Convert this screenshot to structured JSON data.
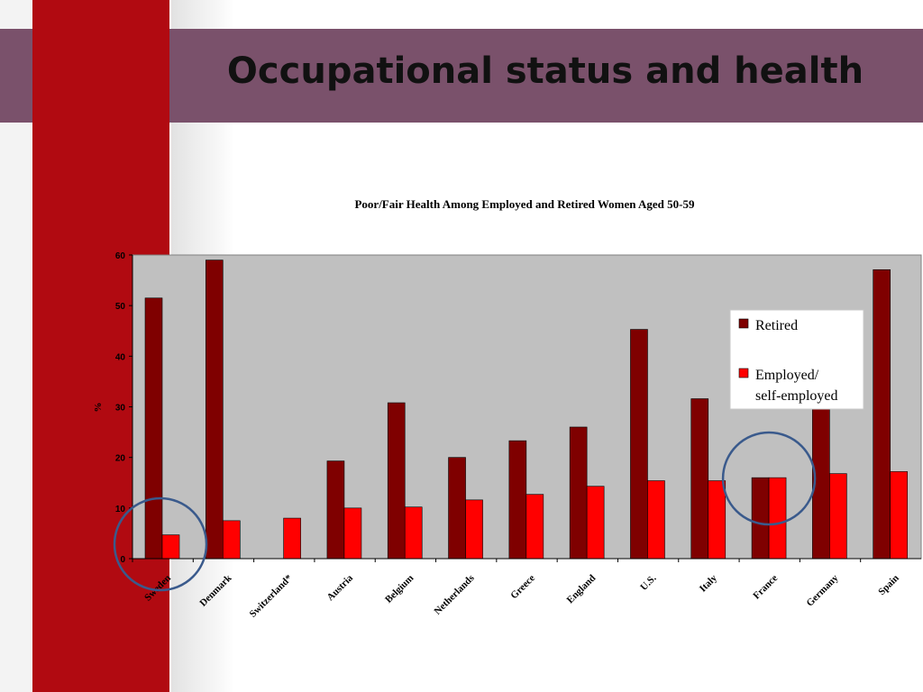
{
  "slide": {
    "title": "Occupational status and health"
  },
  "chart_data": {
    "type": "bar",
    "title": "Poor/Fair Health Among Employed and Retired Women Aged 50-59",
    "ylabel": "%",
    "xlabel": "",
    "ylim": [
      0,
      60
    ],
    "yticks": [
      0,
      10,
      20,
      30,
      40,
      50,
      60
    ],
    "grid": false,
    "legend_position": "right",
    "categories": [
      "Sweden",
      "Denmark",
      "Switzerland*",
      "Austria",
      "Belgium",
      "Netherlands",
      "Greece",
      "England",
      "U.S.",
      "Italy",
      "France",
      "Germany",
      "Spain"
    ],
    "series": [
      {
        "name": "Retired",
        "color": "#7f0000",
        "values": [
          51.5,
          59,
          null,
          19.3,
          30.8,
          20,
          23.3,
          26,
          45.3,
          31.6,
          16,
          30,
          57.1
        ]
      },
      {
        "name": "Employed/\nself-employed",
        "legend_lines": [
          "Employed/",
          "self-employed"
        ],
        "color": "#ff0000",
        "values": [
          4.7,
          7.5,
          8,
          10,
          10.2,
          11.6,
          12.7,
          14.3,
          15.4,
          15.4,
          16,
          16.8,
          17.2
        ]
      }
    ],
    "highlighted_categories": [
      "Sweden",
      "France"
    ],
    "plot_background": "#c0c0c0"
  }
}
